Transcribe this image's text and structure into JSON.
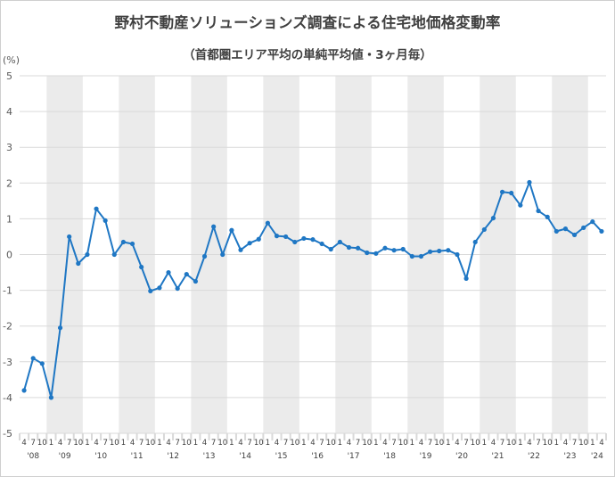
{
  "chart_data": {
    "type": "line",
    "title": "野村不動産ソリューションズ調査による住宅地価格変動率",
    "subtitle": "（首都圏エリア平均の単純平均値・3ヶ月毎）",
    "ylabel": "(%)",
    "ylim": [
      -5,
      5
    ],
    "yticks": [
      5,
      4,
      3,
      2,
      1,
      0,
      -1,
      -2,
      -3,
      -4,
      -5
    ],
    "grid": true,
    "line_color": "#1f77c4",
    "band_color": "#ebebeb",
    "month_labels": [
      "4",
      "7",
      "10",
      "1"
    ],
    "years": [
      "'08",
      "'09",
      "'10",
      "'11",
      "'12",
      "'13",
      "'14",
      "'15",
      "'16",
      "'17",
      "'18",
      "'19",
      "'20",
      "'21",
      "'22",
      "'23",
      "'24"
    ],
    "series": [
      {
        "values": [
          -3.8,
          -2.9,
          -3.05,
          -4.0,
          -2.05,
          0.5,
          -0.25,
          0.0,
          1.28,
          0.95,
          0.0,
          0.35,
          0.3,
          -0.35,
          -1.02,
          -0.93,
          -0.5,
          -0.95,
          -0.55,
          -0.75,
          -0.05,
          0.78,
          0.0,
          0.68,
          0.13,
          0.32,
          0.43,
          0.88,
          0.52,
          0.5,
          0.35,
          0.45,
          0.42,
          0.3,
          0.15,
          0.35,
          0.2,
          0.18,
          0.05,
          0.03,
          0.18,
          0.12,
          0.15,
          -0.05,
          -0.05,
          0.08,
          0.1,
          0.12,
          0.0,
          -0.67,
          0.35,
          0.7,
          1.02,
          1.75,
          1.72,
          1.38,
          2.02,
          1.22,
          1.05,
          0.65,
          0.72,
          0.55,
          0.75,
          0.92,
          0.65
        ]
      }
    ]
  }
}
